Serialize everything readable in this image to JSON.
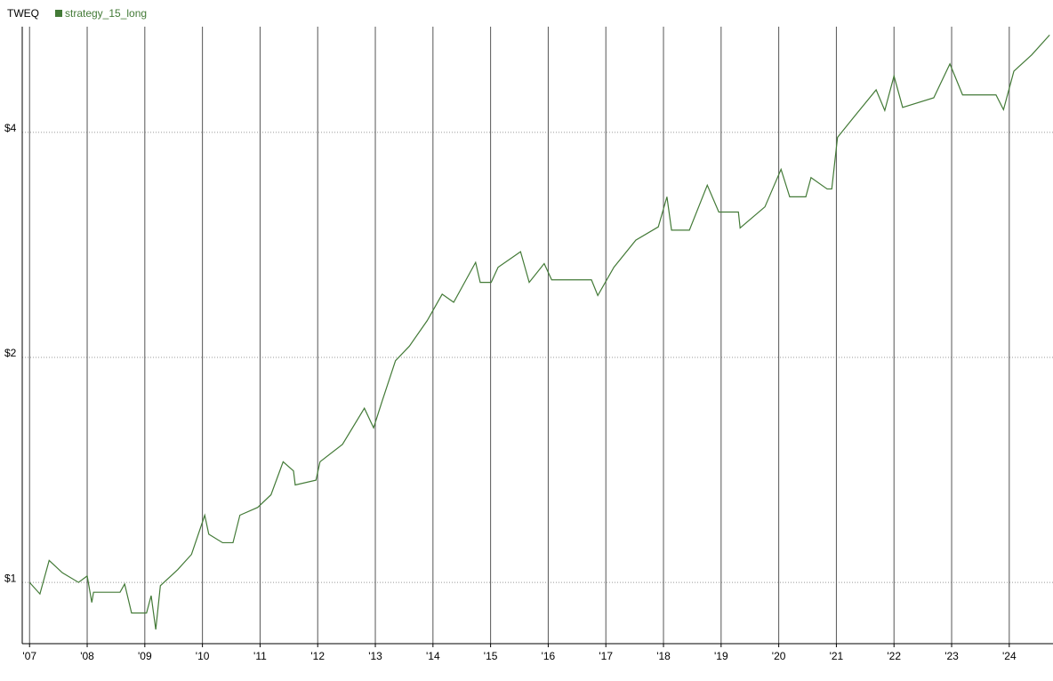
{
  "chart_data": {
    "type": "line",
    "title": "TWEQ",
    "log_y": true,
    "grid": true,
    "legend": "top-left",
    "xlim": [
      2006.873,
      2024.759
    ],
    "ylim": [
      0.828,
      5.54
    ],
    "xticks": [
      {
        "value": 2007,
        "label": "'07"
      },
      {
        "value": 2008,
        "label": "'08"
      },
      {
        "value": 2009,
        "label": "'09"
      },
      {
        "value": 2010,
        "label": "'10"
      },
      {
        "value": 2011,
        "label": "'11"
      },
      {
        "value": 2012,
        "label": "'12"
      },
      {
        "value": 2013,
        "label": "'13"
      },
      {
        "value": 2014,
        "label": "'14"
      },
      {
        "value": 2015,
        "label": "'15"
      },
      {
        "value": 2016,
        "label": "'16"
      },
      {
        "value": 2017,
        "label": "'17"
      },
      {
        "value": 2018,
        "label": "'18"
      },
      {
        "value": 2019,
        "label": "'19"
      },
      {
        "value": 2020,
        "label": "'20"
      },
      {
        "value": 2021,
        "label": "'21"
      },
      {
        "value": 2022,
        "label": "'22"
      },
      {
        "value": 2023,
        "label": "'23"
      },
      {
        "value": 2024,
        "label": "'24"
      }
    ],
    "yticks": [
      {
        "value": 1,
        "label": "$1"
      },
      {
        "value": 2,
        "label": "$2"
      },
      {
        "value": 4,
        "label": "$4"
      }
    ],
    "x": [
      2007.0,
      2007.18,
      2007.34,
      2007.57,
      2007.85,
      2008.0,
      2008.08,
      2008.11,
      2008.57,
      2008.65,
      2008.77,
      2009.03,
      2009.11,
      2009.19,
      2009.27,
      2009.57,
      2009.81,
      2010.04,
      2010.11,
      2010.35,
      2010.53,
      2010.65,
      2010.96,
      2011.19,
      2011.4,
      2011.58,
      2011.61,
      2011.97,
      2012.04,
      2012.43,
      2012.81,
      2012.97,
      2013.12,
      2013.35,
      2013.59,
      2013.9,
      2014.16,
      2014.36,
      2014.74,
      2014.82,
      2015.01,
      2015.13,
      2015.52,
      2015.67,
      2015.93,
      2016.06,
      2016.75,
      2016.86,
      2017.14,
      2017.52,
      2017.91,
      2018.06,
      2018.14,
      2018.45,
      2018.76,
      2018.96,
      2019.3,
      2019.33,
      2019.76,
      2020.04,
      2020.19,
      2020.47,
      2020.56,
      2020.84,
      2020.92,
      2021.02,
      2021.3,
      2021.69,
      2021.84,
      2022.0,
      2022.15,
      2022.69,
      2022.97,
      2023.19,
      2023.77,
      2023.9,
      2024.08,
      2024.39,
      2024.7
    ],
    "series": [
      {
        "name": "strategy_15_long",
        "color": "#437a37",
        "values": [
          1.0,
          0.965,
          1.07,
          1.03,
          1.0,
          1.02,
          0.94,
          0.97,
          0.97,
          0.995,
          0.91,
          0.91,
          0.96,
          0.865,
          0.99,
          1.04,
          1.09,
          1.23,
          1.16,
          1.13,
          1.13,
          1.23,
          1.26,
          1.31,
          1.45,
          1.41,
          1.35,
          1.37,
          1.45,
          1.53,
          1.71,
          1.61,
          1.75,
          1.98,
          2.07,
          2.24,
          2.43,
          2.37,
          2.68,
          2.52,
          2.52,
          2.64,
          2.77,
          2.52,
          2.67,
          2.54,
          2.54,
          2.42,
          2.64,
          2.87,
          2.99,
          3.28,
          2.96,
          2.96,
          3.4,
          3.13,
          3.13,
          2.98,
          3.18,
          3.57,
          3.28,
          3.28,
          3.48,
          3.36,
          3.36,
          3.94,
          4.19,
          4.56,
          4.28,
          4.76,
          4.32,
          4.45,
          4.94,
          4.49,
          4.49,
          4.29,
          4.83,
          5.08,
          5.4
        ]
      }
    ]
  }
}
